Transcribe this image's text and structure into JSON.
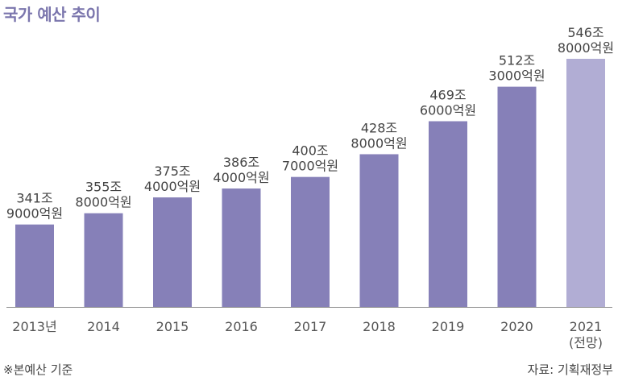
{
  "title": "국가 예산 추이",
  "note_left": "※본예산 기준",
  "note_right": "자료: 기획재정부",
  "colors": {
    "bar": "#8680b8",
    "bar_projected": "#b1add4",
    "title": "#7b76ad",
    "axis": "#888888"
  },
  "chart_data": {
    "type": "bar",
    "categories": [
      [
        "2013년"
      ],
      [
        "2014"
      ],
      [
        "2015"
      ],
      [
        "2016"
      ],
      [
        "2017"
      ],
      [
        "2018"
      ],
      [
        "2019"
      ],
      [
        "2020"
      ],
      [
        "2021",
        "(전망)"
      ]
    ],
    "values": [
      341.9,
      355.8,
      375.4,
      386.4,
      400.7,
      428.8,
      469.6,
      512.3,
      546.8
    ],
    "data_labels": [
      [
        "341조",
        "9000억원"
      ],
      [
        "355조",
        "8000억원"
      ],
      [
        "375조",
        "4000억원"
      ],
      [
        "386조",
        "4000억원"
      ],
      [
        "400조",
        "7000억원"
      ],
      [
        "428조",
        "8000억원"
      ],
      [
        "469조",
        "6000억원"
      ],
      [
        "512조",
        "3000억원"
      ],
      [
        "546조",
        "8000억원"
      ]
    ],
    "projected": [
      false,
      false,
      false,
      false,
      false,
      false,
      false,
      false,
      true
    ],
    "unit": "조원",
    "ylim": [
      240,
      546.8
    ],
    "grid": false,
    "legend": "none"
  }
}
